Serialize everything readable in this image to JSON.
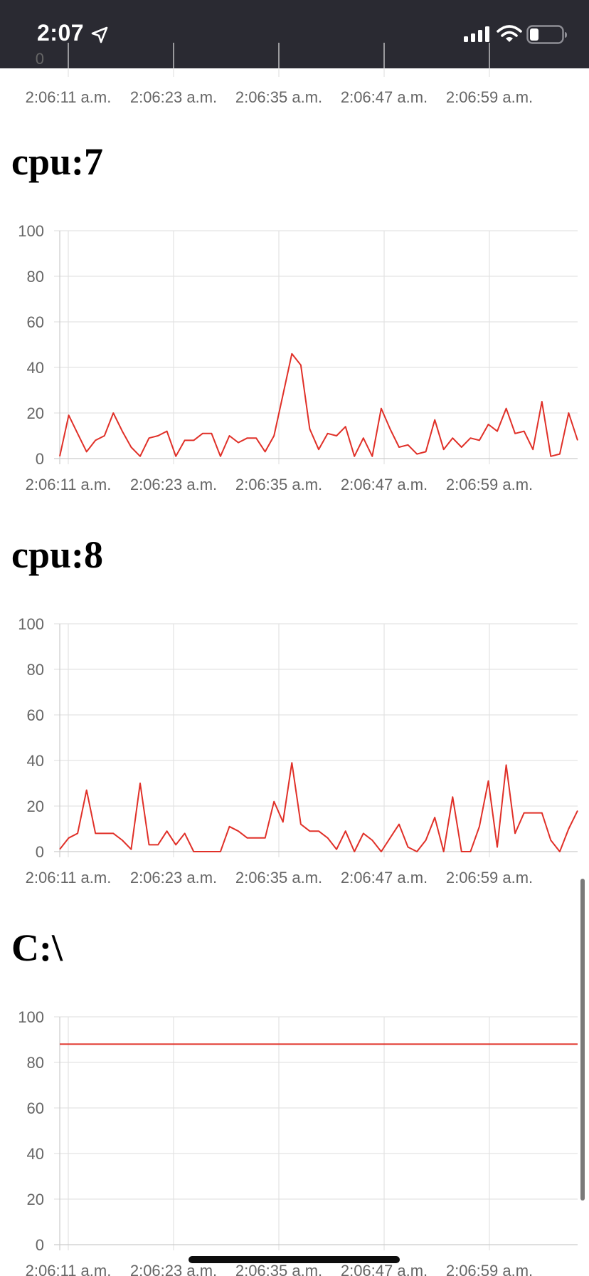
{
  "status_bar": {
    "time": "2:07",
    "icons": [
      "location-arrow-icon",
      "cellular-signal-icon",
      "wifi-icon",
      "battery-icon"
    ],
    "background": "#2a2a32"
  },
  "colors": {
    "series_line": "#e03028",
    "grid": "#e3e3e3",
    "axis": "#cccccc",
    "tick_text": "#666666"
  },
  "sections": [
    {
      "title": ""
    },
    {
      "title": "cpu:7"
    },
    {
      "title": "cpu:8"
    },
    {
      "title": "C:\\"
    }
  ],
  "chart_data": [
    {
      "type": "line",
      "title": "",
      "x_tick_labels": [
        "2:06:11 a.m.",
        "2:06:23 a.m.",
        "2:06:35 a.m.",
        "2:06:47 a.m.",
        "2:06:59 a.m."
      ],
      "y_ticks": [],
      "visible_partial_tick": "0",
      "x_window_seconds": [
        0,
        58
      ],
      "series": [
        {
          "values": []
        }
      ]
    },
    {
      "type": "line",
      "title": "cpu:7",
      "x_tick_labels": [
        "2:06:11 a.m.",
        "2:06:23 a.m.",
        "2:06:35 a.m.",
        "2:06:47 a.m.",
        "2:06:59 a.m."
      ],
      "y_ticks": [
        0,
        20,
        40,
        60,
        80,
        100
      ],
      "ylim": [
        0,
        100
      ],
      "x_window_seconds": [
        0,
        58
      ],
      "grid": true,
      "series": [
        {
          "x": [
            0,
            1,
            2,
            3,
            4,
            5,
            6,
            7,
            8,
            9,
            10,
            11,
            12,
            13,
            14,
            15,
            16,
            17,
            18,
            19,
            20,
            21,
            22,
            23,
            24,
            25,
            26,
            27,
            28,
            29,
            30,
            31,
            32,
            33,
            34,
            35,
            36,
            37,
            38,
            39,
            40,
            41,
            42,
            43,
            44,
            45,
            46,
            47,
            48,
            49,
            50,
            51,
            52,
            53,
            54,
            55,
            56,
            57,
            58
          ],
          "values": [
            1,
            19,
            11,
            3,
            8,
            10,
            20,
            12,
            5,
            1,
            9,
            10,
            12,
            1,
            8,
            8,
            11,
            11,
            1,
            10,
            7,
            9,
            9,
            3,
            10,
            28,
            46,
            41,
            13,
            4,
            11,
            10,
            14,
            1,
            9,
            1,
            22,
            13,
            5,
            6,
            2,
            3,
            17,
            4,
            9,
            5,
            9,
            8,
            15,
            12,
            22,
            11,
            12,
            4,
            25,
            1,
            2,
            20,
            8
          ]
        }
      ]
    },
    {
      "type": "line",
      "title": "cpu:8",
      "x_tick_labels": [
        "2:06:11 a.m.",
        "2:06:23 a.m.",
        "2:06:35 a.m.",
        "2:06:47 a.m.",
        "2:06:59 a.m."
      ],
      "y_ticks": [
        0,
        20,
        40,
        60,
        80,
        100
      ],
      "ylim": [
        0,
        100
      ],
      "x_window_seconds": [
        0,
        58
      ],
      "grid": true,
      "series": [
        {
          "x": [
            0,
            1,
            2,
            3,
            4,
            5,
            6,
            7,
            8,
            9,
            10,
            11,
            12,
            13,
            14,
            15,
            16,
            17,
            18,
            19,
            20,
            21,
            22,
            23,
            24,
            25,
            26,
            27,
            28,
            29,
            30,
            31,
            32,
            33,
            34,
            35,
            36,
            37,
            38,
            39,
            40,
            41,
            42,
            43,
            44,
            45,
            46,
            47,
            48,
            49,
            50,
            51,
            52,
            53,
            54,
            55,
            56,
            57,
            58
          ],
          "values": [
            1,
            6,
            8,
            27,
            8,
            8,
            8,
            5,
            1,
            30,
            3,
            3,
            9,
            3,
            8,
            0,
            0,
            0,
            0,
            11,
            9,
            6,
            6,
            6,
            22,
            13,
            39,
            12,
            9,
            9,
            6,
            1,
            9,
            0,
            8,
            5,
            0,
            6,
            12,
            2,
            0,
            5,
            15,
            0,
            24,
            0,
            0,
            11,
            31,
            2,
            38,
            8,
            17,
            17,
            17,
            5,
            0,
            10,
            18
          ]
        }
      ]
    },
    {
      "type": "line",
      "title": "C:\\",
      "x_tick_labels": [
        "2:06:11 a.m.",
        "2:06:23 a.m.",
        "2:06:35 a.m.",
        "2:06:47 a.m.",
        "2:06:59 a.m."
      ],
      "y_ticks": [
        0,
        20,
        40,
        60,
        80,
        100
      ],
      "ylim": [
        0,
        100
      ],
      "x_window_seconds": [
        0,
        58
      ],
      "grid": true,
      "series": [
        {
          "x": [
            0,
            58
          ],
          "values": [
            88,
            88
          ]
        }
      ]
    }
  ]
}
